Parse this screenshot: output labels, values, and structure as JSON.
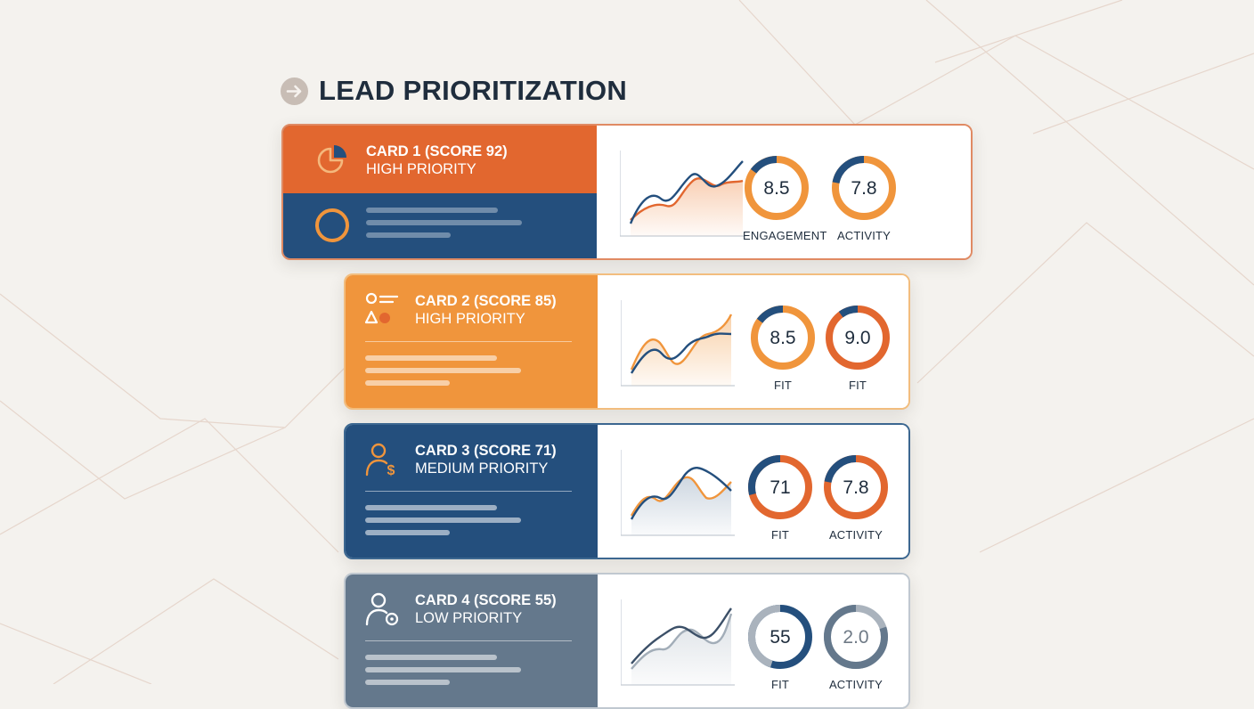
{
  "page": {
    "title": "LEAD PRIORITIZATION"
  },
  "colors": {
    "orange_dark": "#e2672f",
    "orange": "#f0953c",
    "navy": "#244f7d",
    "slate": "#64788c",
    "gray_ring": "#aab3bd"
  },
  "cards": [
    {
      "name": "CARD 1 (SCORE 92)",
      "priority": "HIGH PRIORITY",
      "icon": "pie-chart-icon",
      "secondary_icon": "ring-icon",
      "metrics": [
        {
          "value": "8.5",
          "label": "ENGAGEMENT",
          "fill": 0.85,
          "ring": "orange",
          "arc": "navy"
        },
        {
          "value": "7.8",
          "label": "ACTIVITY",
          "fill": 0.78,
          "ring": "orange",
          "arc": "navy"
        }
      ]
    },
    {
      "name": "CARD 2 (SCORE 85)",
      "priority": "HIGH PRIORITY",
      "icon": "shapes-list-icon",
      "metrics": [
        {
          "value": "8.5",
          "label": "FIT",
          "fill": 0.85,
          "ring": "orange",
          "arc": "navy"
        },
        {
          "value": "9.0",
          "label": "FIT",
          "fill": 0.9,
          "ring": "orange_dark",
          "arc": "navy"
        }
      ]
    },
    {
      "name": "CARD 3 (SCORE 71)",
      "priority": "MEDIUM PRIORITY",
      "icon": "user-dollar-icon",
      "metrics": [
        {
          "value": "71",
          "label": "FIT",
          "fill": 0.71,
          "ring": "orange_dark",
          "arc": "navy"
        },
        {
          "value": "7.8",
          "label": "ACTIVITY",
          "fill": 0.78,
          "ring": "orange_dark",
          "arc": "navy"
        }
      ]
    },
    {
      "name": "CARD 4 (SCORE 55)",
      "priority": "LOW PRIORITY",
      "icon": "user-settings-icon",
      "metrics": [
        {
          "value": "55",
          "label": "FIT",
          "fill": 0.55,
          "ring": "navy",
          "arc": "gray_ring"
        },
        {
          "value": "2.0",
          "label": "ACTIVITY",
          "fill": 0.2,
          "ring": "gray_ring",
          "arc": "slate"
        }
      ]
    }
  ]
}
